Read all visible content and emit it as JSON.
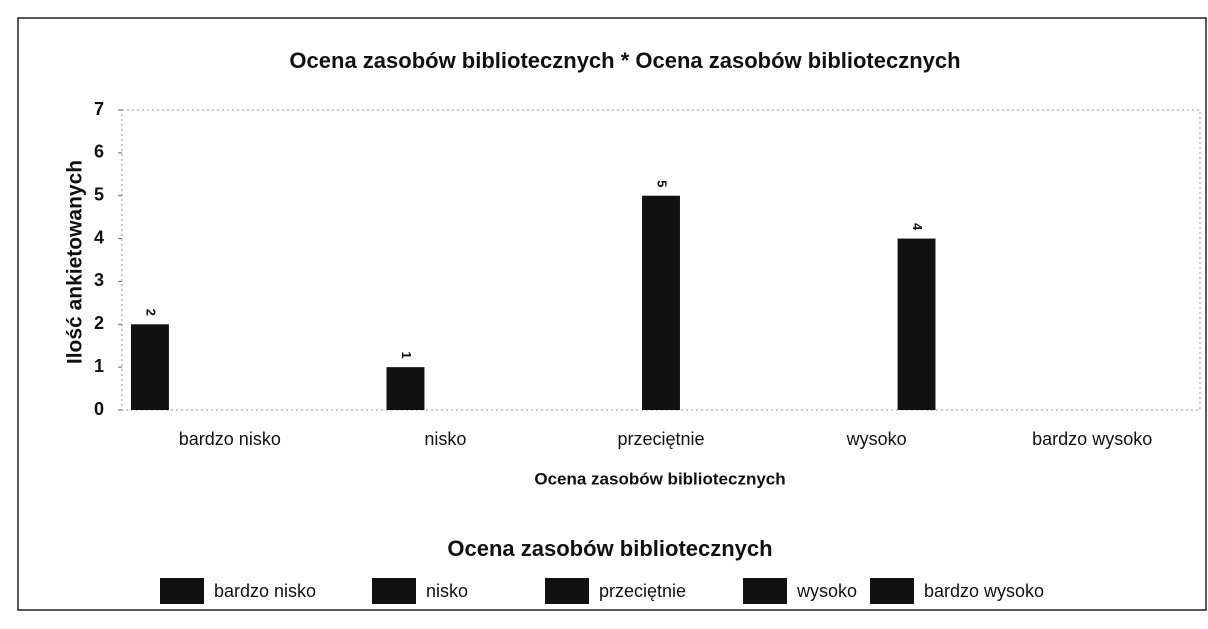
{
  "chart_data": {
    "type": "bar",
    "title": "Ocena zasobów bibliotecznych * Ocena zasobów bibliotecznych",
    "x_label": "Ocena zasobów bibliotecznych",
    "y_label": "Ilość ankietowanych",
    "legend_title": "Ocena zasobów bibliotecznych",
    "categories": [
      "bardzo nisko",
      "nisko",
      "przeciętnie",
      "wysoko",
      "bardzo wysoko"
    ],
    "series": [
      {
        "name": "bardzo nisko",
        "color": "#111111",
        "values": [
          2,
          null,
          null,
          null,
          null
        ]
      },
      {
        "name": "nisko",
        "color": "#111111",
        "values": [
          null,
          1,
          null,
          null,
          null
        ]
      },
      {
        "name": "przeciętnie",
        "color": "#111111",
        "values": [
          null,
          null,
          5,
          null,
          null
        ]
      },
      {
        "name": "wysoko",
        "color": "#111111",
        "values": [
          null,
          null,
          null,
          4,
          null
        ]
      },
      {
        "name": "bardzo wysoko",
        "color": "#111111",
        "values": [
          null,
          null,
          null,
          null,
          null
        ]
      }
    ],
    "ylim": [
      0,
      7
    ],
    "yticks": [
      0,
      1,
      2,
      3,
      4,
      5,
      6,
      7
    ],
    "grid": false,
    "legend": "bottom"
  }
}
